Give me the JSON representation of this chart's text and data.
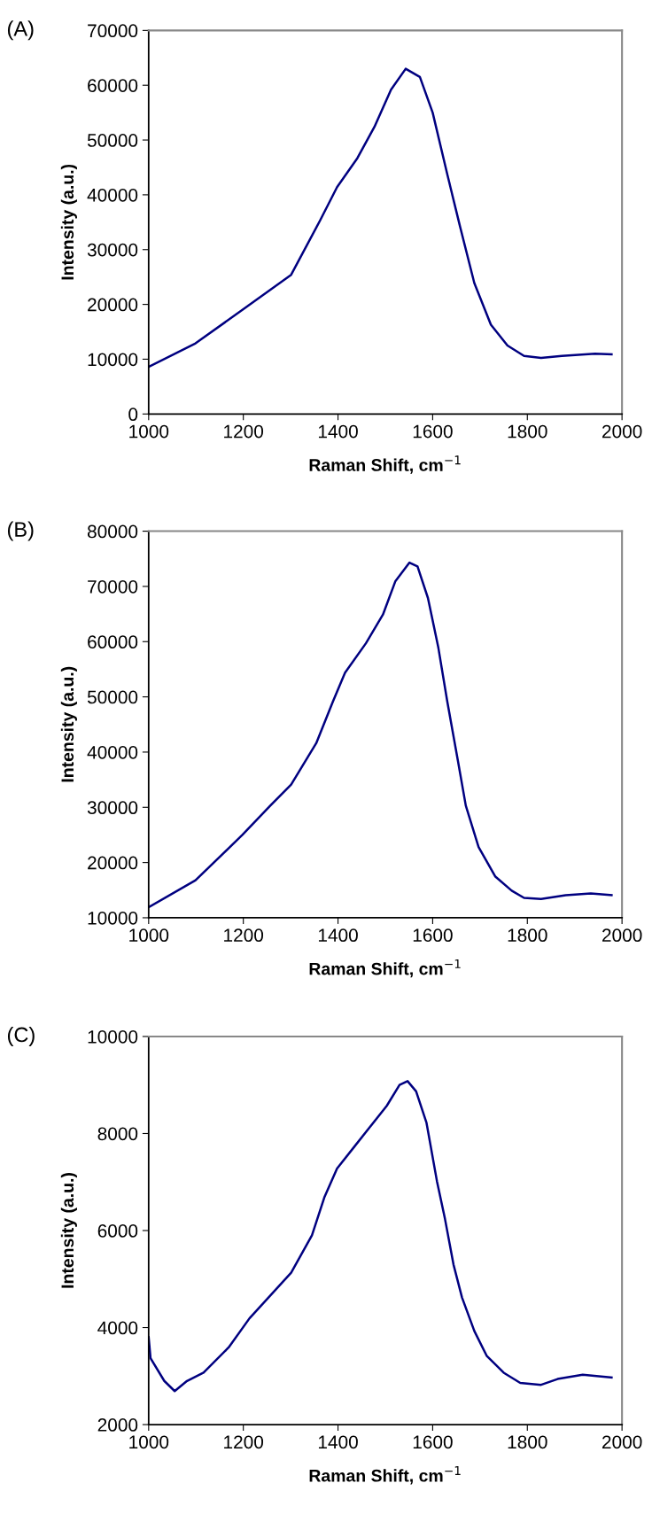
{
  "chart_data": [
    {
      "type": "line",
      "title": "(A)",
      "xlabel": "Raman Shift, cm$^{−1}$",
      "ylabel": "Intensity (a.u.)",
      "xlim": [
        1000,
        2000
      ],
      "xticks": [
        1000,
        1200,
        1400,
        1600,
        1800,
        2000
      ],
      "ylim": [
        0,
        70000
      ],
      "yticks": [
        0,
        10000,
        20000,
        30000,
        40000,
        50000,
        60000,
        70000
      ],
      "grid": false,
      "marker": "none",
      "line_style": "solid",
      "series": [
        {
          "color": "#000080",
          "x": [
            1000,
            1099,
            1198,
            1301,
            1362,
            1398,
            1441,
            1477,
            1512,
            1543,
            1573,
            1600,
            1631,
            1657,
            1688,
            1723,
            1758,
            1793,
            1829,
            1873,
            1943,
            1978
          ],
          "values": [
            8600,
            12900,
            19000,
            25400,
            35300,
            41400,
            46700,
            52400,
            59200,
            63000,
            61500,
            55000,
            43700,
            34500,
            23900,
            16300,
            12500,
            10600,
            10250,
            10600,
            11000,
            10900
          ]
        }
      ]
    },
    {
      "type": "line",
      "title": "(B)",
      "xlabel": "Raman Shift, cm$^{−1}$",
      "ylabel": "Intensity (a.u.)",
      "xlim": [
        1000,
        2000
      ],
      "xticks": [
        1000,
        1200,
        1400,
        1600,
        1800,
        2000
      ],
      "ylim": [
        10000,
        80000
      ],
      "yticks": [
        10000,
        20000,
        30000,
        40000,
        50000,
        60000,
        70000,
        80000
      ],
      "grid": false,
      "marker": "none",
      "line_style": "solid",
      "series": [
        {
          "color": "#000080",
          "x": [
            1000,
            1099,
            1198,
            1257,
            1301,
            1354,
            1389,
            1415,
            1459,
            1495,
            1521,
            1551,
            1568,
            1590,
            1612,
            1631,
            1653,
            1670,
            1697,
            1732,
            1767,
            1793,
            1829,
            1881,
            1934,
            1978
          ],
          "values": [
            11900,
            16800,
            25000,
            30300,
            34100,
            41600,
            49100,
            54400,
            59700,
            64900,
            70900,
            74300,
            73600,
            67900,
            58900,
            49100,
            38600,
            30300,
            22800,
            17500,
            14900,
            13600,
            13400,
            14100,
            14400,
            14100
          ]
        }
      ]
    },
    {
      "type": "line",
      "title": "(C)",
      "xlabel": "Raman Shift, cm$^{−1}$",
      "ylabel": "Intensity (a.u.)",
      "xlim": [
        1000,
        2000
      ],
      "xticks": [
        1000,
        1200,
        1400,
        1600,
        1800,
        2000
      ],
      "ylim": [
        2000,
        10000
      ],
      "yticks": [
        2000,
        4000,
        6000,
        8000,
        10000
      ],
      "grid": false,
      "marker": "none",
      "line_style": "solid",
      "series": [
        {
          "color": "#000080",
          "x": [
            1000,
            1004,
            1033,
            1055,
            1081,
            1116,
            1169,
            1213,
            1257,
            1301,
            1345,
            1371,
            1398,
            1433,
            1468,
            1503,
            1530,
            1547,
            1565,
            1587,
            1609,
            1626,
            1644,
            1662,
            1688,
            1714,
            1750,
            1785,
            1829,
            1864,
            1917,
            1978
          ],
          "values": [
            3800,
            3370,
            2900,
            2690,
            2900,
            3070,
            3590,
            4190,
            4660,
            5130,
            5900,
            6680,
            7280,
            7710,
            8140,
            8570,
            9000,
            9080,
            8870,
            8220,
            7020,
            6240,
            5300,
            4620,
            3930,
            3420,
            3070,
            2860,
            2820,
            2940,
            3030,
            2970
          ]
        }
      ]
    }
  ]
}
